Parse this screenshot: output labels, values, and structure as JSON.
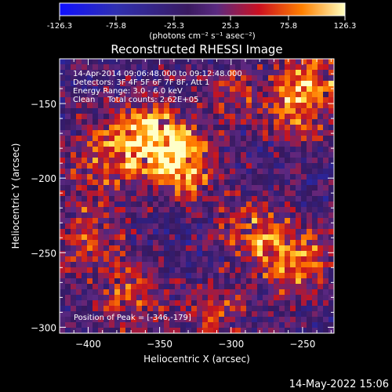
{
  "chart_data": {
    "type": "heatmap",
    "title": "Reconstructed RHESSI Image",
    "xlabel": "Heliocentric X (arcsec)",
    "ylabel": "Heliocentric Y (arcsec)",
    "xlim": [
      -420,
      -228
    ],
    "ylim": [
      -304,
      -120
    ],
    "xticks": [
      -400,
      -350,
      -300,
      -250
    ],
    "yticks": [
      -150,
      -200,
      -250,
      -300
    ],
    "colorbar": {
      "ticks": [
        "-126.3",
        "-75.8",
        "-25.3",
        "25.3",
        "75.8",
        "126.3"
      ],
      "vmin": -126.3,
      "vmax": 126.3,
      "unit_label": "(photons cm⁻² s⁻¹ asec⁻²)"
    },
    "annotations": [
      "14-Apr-2014 09:06:48.000 to 09:12:48.000",
      "Detectors: 3F 4F 5F 6F 7F 8F, Att 1",
      "Energy Range: 3.0 - 6.0 keV",
      "Clean     Total counts: 2.62E+05"
    ],
    "peak_label": "Position of Peak = [-346,-179]",
    "sources": [
      {
        "x": -346,
        "y": -179,
        "amplitude": 126.3
      },
      {
        "x": -370,
        "y": -170,
        "amplitude": 80
      },
      {
        "x": -330,
        "y": -195,
        "amplitude": 70
      },
      {
        "x": -255,
        "y": -150,
        "amplitude": 90
      },
      {
        "x": -238,
        "y": -130,
        "amplitude": 60
      },
      {
        "x": -255,
        "y": -255,
        "amplitude": 95
      },
      {
        "x": -285,
        "y": -235,
        "amplitude": 80
      },
      {
        "x": -400,
        "y": -240,
        "amplitude": 75
      },
      {
        "x": -395,
        "y": -190,
        "amplitude": 60
      },
      {
        "x": -370,
        "y": -280,
        "amplitude": 70
      },
      {
        "x": -310,
        "y": -290,
        "amplitude": 55
      },
      {
        "x": -300,
        "y": -140,
        "amplitude": 45
      }
    ]
  },
  "footer": {
    "date_stamp": "14-May-2022 15:06"
  }
}
